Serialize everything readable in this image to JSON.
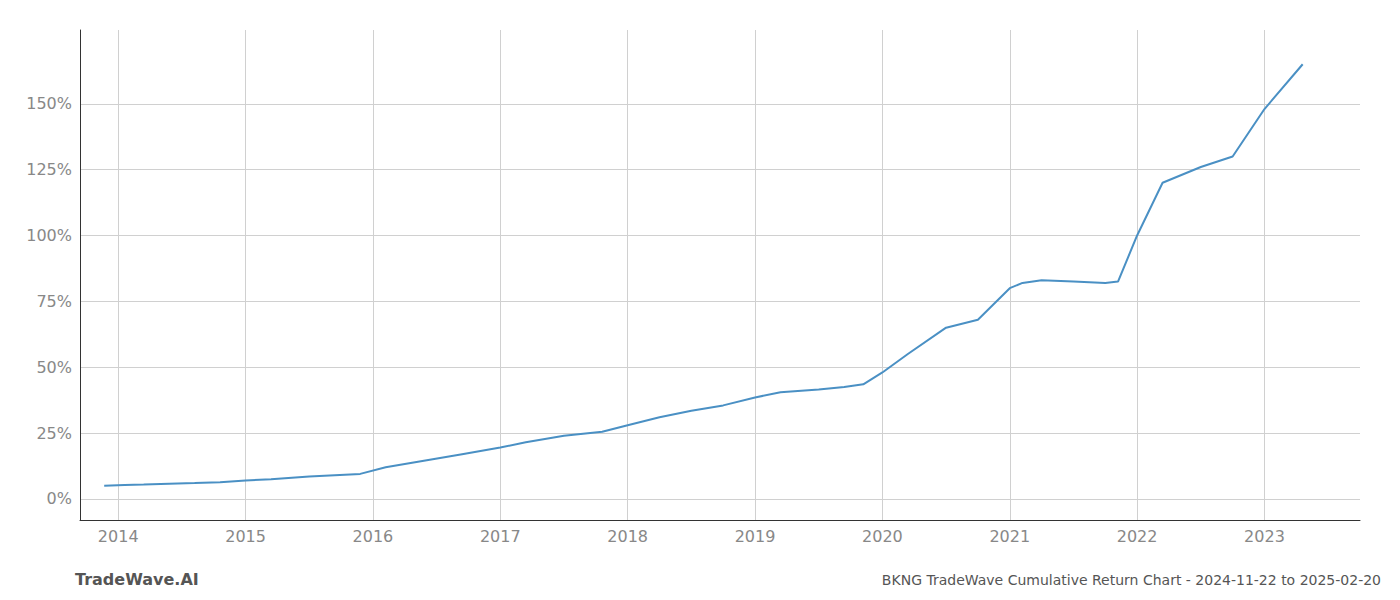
{
  "chart_data": {
    "type": "line",
    "title": "BKNG TradeWave Cumulative Return Chart - 2024-11-22 to 2025-02-20",
    "annotations": [
      "TradeWave.AI"
    ],
    "x": [
      2013.89,
      2014.05,
      2014.2,
      2014.4,
      2014.6,
      2014.8,
      2015.0,
      2015.2,
      2015.5,
      2015.7,
      2015.9,
      2016.1,
      2016.4,
      2016.7,
      2017.0,
      2017.2,
      2017.5,
      2017.8,
      2018.0,
      2018.25,
      2018.5,
      2018.75,
      2019.0,
      2019.2,
      2019.5,
      2019.7,
      2019.85,
      2020.0,
      2020.2,
      2020.5,
      2020.75,
      2021.0,
      2021.1,
      2021.25,
      2021.5,
      2021.75,
      2021.85,
      2022.0,
      2022.2,
      2022.5,
      2022.75,
      2023.0,
      2023.3
    ],
    "values": [
      5.0,
      5.3,
      5.5,
      5.8,
      6.0,
      6.3,
      7.0,
      7.5,
      8.5,
      9.0,
      9.5,
      12.0,
      14.5,
      17.0,
      19.5,
      21.5,
      24.0,
      25.5,
      28.0,
      31.0,
      33.5,
      35.5,
      38.5,
      40.5,
      41.5,
      42.5,
      43.5,
      48.0,
      55.0,
      65.0,
      68.0,
      80.0,
      82.0,
      83.0,
      82.5,
      82.0,
      82.5,
      100.0,
      120.0,
      126.0,
      130.0,
      148.0,
      165.0
    ],
    "color": "#4a90c4",
    "xlim": [
      2013.7,
      2023.75
    ],
    "xticks": [
      2014,
      2015,
      2016,
      2017,
      2018,
      2019,
      2020,
      2021,
      2022,
      2023
    ],
    "ylim": [
      -8,
      178
    ],
    "yticks": [
      {
        "value": 0,
        "label": "0%"
      },
      {
        "value": 25,
        "label": "25%"
      },
      {
        "value": 50,
        "label": "50%"
      },
      {
        "value": 75,
        "label": "75%"
      },
      {
        "value": 100,
        "label": "100%"
      },
      {
        "value": 125,
        "label": "125%"
      },
      {
        "value": 150,
        "label": "150%"
      }
    ],
    "grid": true
  }
}
